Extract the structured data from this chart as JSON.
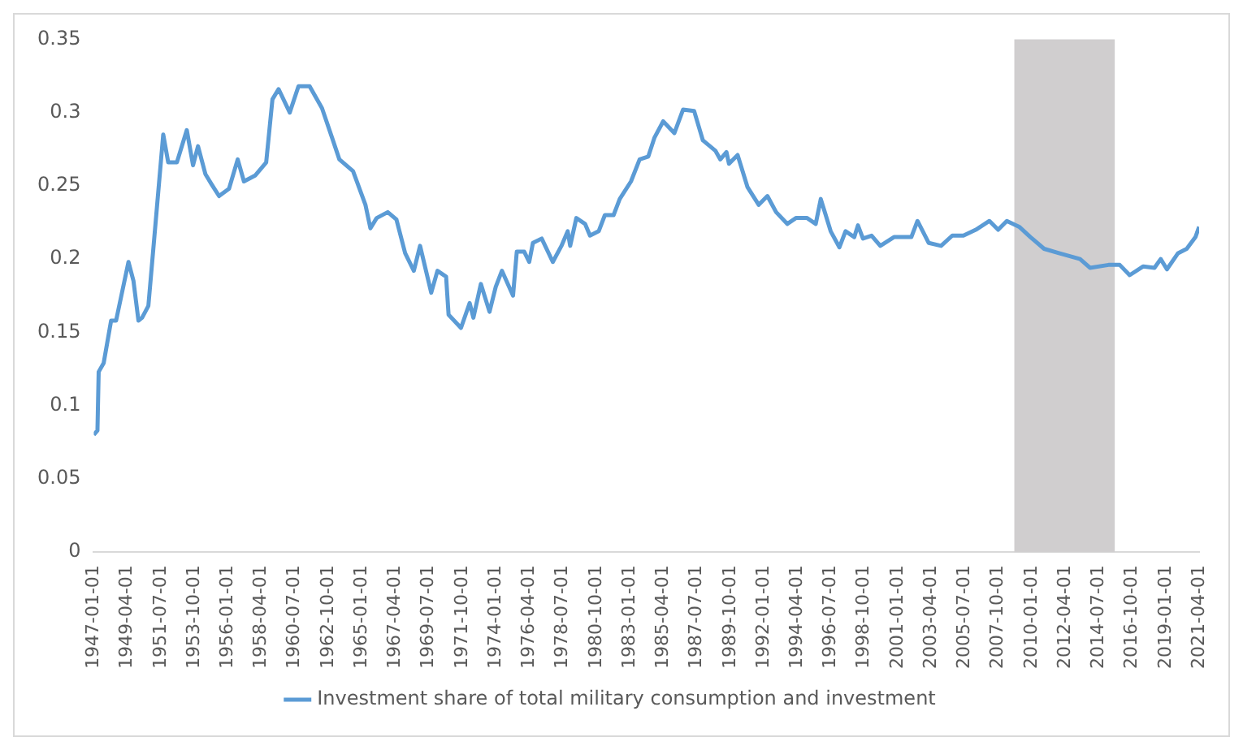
{
  "chart_data": {
    "type": "line",
    "x": [
      "1947-01",
      "1947-04",
      "1947-05",
      "1947-09",
      "1948-03",
      "1948-07",
      "1949-05",
      "1949-09",
      "1950-01",
      "1950-04",
      "1950-09",
      "1951-01",
      "1951-09",
      "1952-01",
      "1952-08",
      "1953-04",
      "1953-09",
      "1954-01",
      "1954-07",
      "1954-12",
      "1955-06",
      "1956-02",
      "1956-09",
      "1957-02",
      "1957-11",
      "1958-08",
      "1959-01",
      "1959-06",
      "1960-03",
      "1960-10",
      "1961-07",
      "1962-05",
      "1963-01",
      "1963-07",
      "1964-06",
      "1965-04",
      "1965-08",
      "1966-01",
      "1966-10",
      "1967-05",
      "1967-12",
      "1968-07",
      "1968-12",
      "1969-09",
      "1970-02",
      "1970-09",
      "1970-11",
      "1971-09",
      "1972-04",
      "1972-07",
      "1973-01",
      "1973-08",
      "1974-01",
      "1974-06",
      "1975-03",
      "1975-06",
      "1975-12",
      "1976-04",
      "1976-07",
      "1977-02",
      "1977-11",
      "1978-06",
      "1978-11",
      "1979-01",
      "1979-06",
      "1980-01",
      "1980-05",
      "1980-12",
      "1981-05",
      "1981-12",
      "1982-05",
      "1983-02",
      "1983-09",
      "1984-04",
      "1984-09",
      "1985-04",
      "1986-01",
      "1986-08",
      "1987-05",
      "1987-12",
      "1988-10",
      "1989-02",
      "1989-07",
      "1989-09",
      "1990-04",
      "1990-12",
      "1991-09",
      "1992-04",
      "1992-11",
      "1993-08",
      "1994-03",
      "1994-12",
      "1995-07",
      "1995-11",
      "1996-07",
      "1997-02",
      "1997-07",
      "1998-02",
      "1998-05",
      "1998-09",
      "1999-04",
      "1999-11",
      "2000-10",
      "2001-12",
      "2002-05",
      "2003-02",
      "2003-12",
      "2004-09",
      "2005-06",
      "2006-04",
      "2007-03",
      "2007-10",
      "2008-05",
      "2009-03",
      "2009-12",
      "2010-11",
      "2011-11",
      "2013-04",
      "2013-12",
      "2015-03",
      "2015-12",
      "2016-08",
      "2017-07",
      "2018-04",
      "2018-09",
      "2019-02",
      "2019-11",
      "2020-06",
      "2021-01",
      "2021-04"
    ],
    "series": [
      {
        "name": "Investment share of total military consumption and investment",
        "color": "#5b9bd5",
        "values": [
          0.08,
          0.083,
          0.123,
          0.129,
          0.158,
          0.158,
          0.198,
          0.185,
          0.158,
          0.16,
          0.168,
          0.207,
          0.285,
          0.266,
          0.266,
          0.288,
          0.264,
          0.277,
          0.258,
          0.251,
          0.243,
          0.248,
          0.268,
          0.253,
          0.257,
          0.266,
          0.309,
          0.316,
          0.3,
          0.318,
          0.318,
          0.303,
          0.283,
          0.268,
          0.26,
          0.237,
          0.221,
          0.228,
          0.232,
          0.227,
          0.204,
          0.192,
          0.209,
          0.177,
          0.192,
          0.188,
          0.162,
          0.153,
          0.17,
          0.16,
          0.183,
          0.164,
          0.181,
          0.192,
          0.175,
          0.205,
          0.205,
          0.198,
          0.211,
          0.214,
          0.198,
          0.209,
          0.219,
          0.209,
          0.228,
          0.224,
          0.216,
          0.219,
          0.23,
          0.23,
          0.241,
          0.253,
          0.268,
          0.27,
          0.283,
          0.294,
          0.286,
          0.302,
          0.301,
          0.281,
          0.274,
          0.268,
          0.273,
          0.265,
          0.271,
          0.249,
          0.237,
          0.243,
          0.232,
          0.224,
          0.228,
          0.228,
          0.224,
          0.241,
          0.219,
          0.208,
          0.219,
          0.215,
          0.223,
          0.214,
          0.216,
          0.209,
          0.215,
          0.215,
          0.226,
          0.211,
          0.209,
          0.216,
          0.216,
          0.22,
          0.226,
          0.22,
          0.226,
          0.222,
          0.215,
          0.207,
          0.204,
          0.2,
          0.194,
          0.196,
          0.196,
          0.189,
          0.195,
          0.194,
          0.2,
          0.193,
          0.204,
          0.207,
          0.215,
          0.222
        ]
      }
    ],
    "xlim": [
      "1947-01",
      "2021-04"
    ],
    "xticks": [
      "1947-01-01",
      "1949-04-01",
      "1951-07-01",
      "1953-10-01",
      "1956-01-01",
      "1958-04-01",
      "1960-07-01",
      "1962-10-01",
      "1965-01-01",
      "1967-04-01",
      "1969-07-01",
      "1971-10-01",
      "1974-01-01",
      "1976-04-01",
      "1978-07-01",
      "1980-10-01",
      "1983-01-01",
      "1985-04-01",
      "1987-07-01",
      "1989-10-01",
      "1992-01-01",
      "1994-04-01",
      "1996-07-01",
      "1998-10-01",
      "2001-01-01",
      "2003-04-01",
      "2005-07-01",
      "2007-10-01",
      "2010-01-01",
      "2012-04-01",
      "2014-07-01",
      "2016-10-01",
      "2019-01-01",
      "2021-04-01"
    ],
    "ylim": [
      0,
      0.35
    ],
    "yticks": [
      0,
      0.05,
      0.1,
      0.15,
      0.2,
      0.25,
      0.3,
      0.35
    ],
    "bands": [
      {
        "axis": "x",
        "from": "2008-11",
        "to": "2015-08",
        "color": "#d0cecf"
      }
    ],
    "grid": false,
    "legend": "bottom",
    "marker": "none",
    "line_style": "solid"
  }
}
